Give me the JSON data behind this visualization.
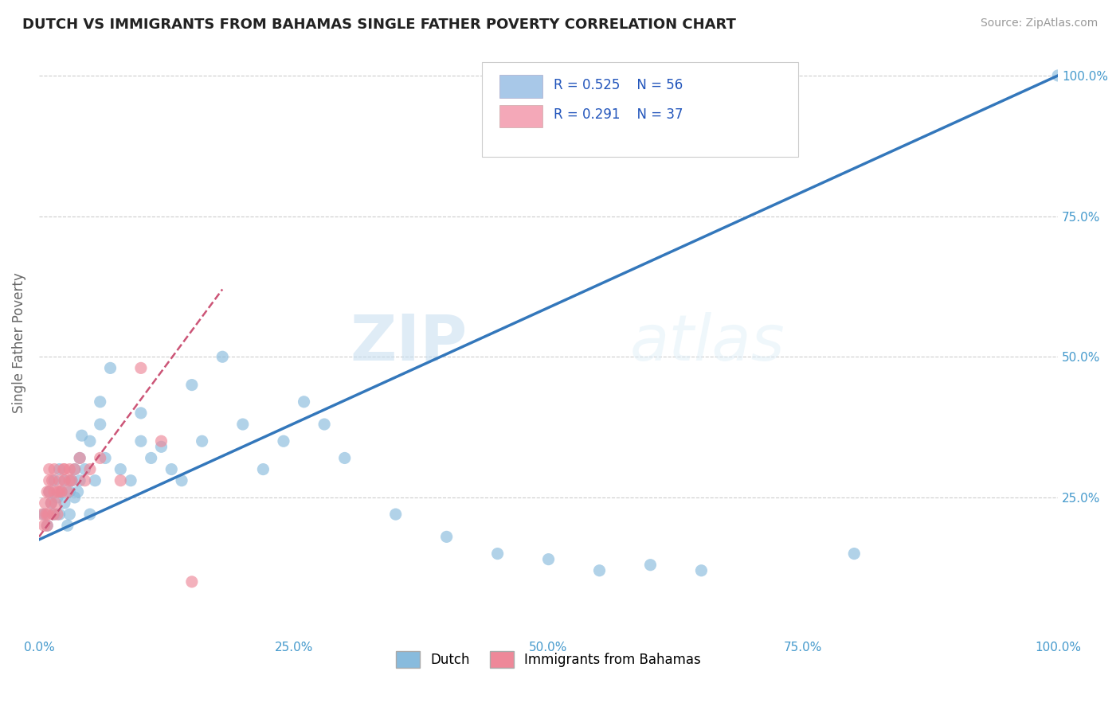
{
  "title": "DUTCH VS IMMIGRANTS FROM BAHAMAS SINGLE FATHER POVERTY CORRELATION CHART",
  "source": "Source: ZipAtlas.com",
  "ylabel": "Single Father Poverty",
  "xlim": [
    0.0,
    1.0
  ],
  "ylim": [
    0.0,
    1.05
  ],
  "xtick_labels": [
    "0.0%",
    "25.0%",
    "50.0%",
    "75.0%",
    "100.0%"
  ],
  "xtick_vals": [
    0.0,
    0.25,
    0.5,
    0.75,
    1.0
  ],
  "ytick_labels": [
    "25.0%",
    "50.0%",
    "75.0%",
    "100.0%"
  ],
  "ytick_vals": [
    0.25,
    0.5,
    0.75,
    1.0
  ],
  "watermark_zip": "ZIP",
  "watermark_atlas": "atlas",
  "legend_dutch_R": "R = 0.525",
  "legend_dutch_N": "N = 56",
  "legend_imm_R": "R = 0.291",
  "legend_imm_N": "N = 37",
  "dutch_legend_color": "#a8c8e8",
  "imm_legend_color": "#f4a8b8",
  "dutch_line_color": "#3377bb",
  "imm_line_color": "#cc5577",
  "dutch_scatter_color": "#88bbdd",
  "imm_scatter_color": "#ee8899",
  "background": "#ffffff",
  "grid_color": "#cccccc",
  "tick_color": "#4499cc",
  "dutch_x": [
    0.005,
    0.008,
    0.01,
    0.012,
    0.015,
    0.015,
    0.018,
    0.02,
    0.02,
    0.022,
    0.025,
    0.025,
    0.028,
    0.03,
    0.03,
    0.032,
    0.035,
    0.035,
    0.038,
    0.04,
    0.04,
    0.042,
    0.045,
    0.05,
    0.05,
    0.055,
    0.06,
    0.06,
    0.065,
    0.07,
    0.08,
    0.09,
    0.1,
    0.1,
    0.11,
    0.12,
    0.13,
    0.14,
    0.15,
    0.16,
    0.18,
    0.2,
    0.22,
    0.24,
    0.26,
    0.28,
    0.3,
    0.35,
    0.4,
    0.45,
    0.5,
    0.55,
    0.6,
    0.65,
    0.8,
    1.0
  ],
  "dutch_y": [
    0.22,
    0.2,
    0.26,
    0.24,
    0.22,
    0.28,
    0.25,
    0.22,
    0.3,
    0.26,
    0.24,
    0.28,
    0.2,
    0.26,
    0.22,
    0.28,
    0.25,
    0.3,
    0.26,
    0.28,
    0.32,
    0.36,
    0.3,
    0.22,
    0.35,
    0.28,
    0.42,
    0.38,
    0.32,
    0.48,
    0.3,
    0.28,
    0.35,
    0.4,
    0.32,
    0.34,
    0.3,
    0.28,
    0.45,
    0.35,
    0.5,
    0.38,
    0.3,
    0.35,
    0.42,
    0.38,
    0.32,
    0.22,
    0.18,
    0.15,
    0.14,
    0.12,
    0.13,
    0.12,
    0.15,
    1.0
  ],
  "imm_x": [
    0.003,
    0.005,
    0.006,
    0.007,
    0.008,
    0.008,
    0.009,
    0.01,
    0.01,
    0.01,
    0.012,
    0.013,
    0.014,
    0.015,
    0.015,
    0.016,
    0.018,
    0.018,
    0.02,
    0.02,
    0.022,
    0.024,
    0.025,
    0.025,
    0.028,
    0.03,
    0.03,
    0.032,
    0.035,
    0.04,
    0.045,
    0.05,
    0.06,
    0.08,
    0.1,
    0.12,
    0.15
  ],
  "imm_y": [
    0.22,
    0.2,
    0.24,
    0.22,
    0.26,
    0.2,
    0.22,
    0.26,
    0.3,
    0.28,
    0.24,
    0.28,
    0.22,
    0.26,
    0.3,
    0.24,
    0.26,
    0.22,
    0.26,
    0.28,
    0.26,
    0.3,
    0.28,
    0.3,
    0.26,
    0.28,
    0.3,
    0.28,
    0.3,
    0.32,
    0.28,
    0.3,
    0.32,
    0.28,
    0.48,
    0.35,
    0.1
  ],
  "imm_line_x_end": 0.18,
  "dutch_line_y_start": 0.175,
  "dutch_line_y_end": 1.0
}
